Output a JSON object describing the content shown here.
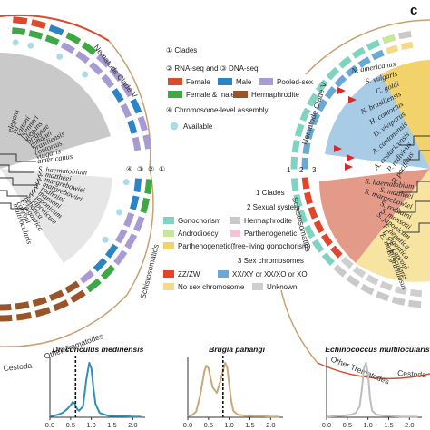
{
  "panel_c_letter": "c",
  "left_wheel": {
    "species_top": [
      "elegans",
      "ca",
      "cattoni",
      "brenneri",
      "ulegans",
      "briggsae",
      "remanei",
      "brasiliensis",
      "contortus",
      "vulgaris",
      "americanus"
    ],
    "species_bottom": [
      "S. haematobium",
      "S. mattheei",
      "S. margrebowiei",
      "S. margrebowiei",
      "S. rodhaini",
      "S. mansoni",
      "S. japonicum",
      "S. japonicum",
      "hepatica",
      "F. gigantica",
      "caproni",
      "multilocularis"
    ],
    "clades": {
      "nematode": "Nematode Clade V",
      "schisto": "Schistosomatids",
      "trematodes": "Other Trematodes",
      "cestoda": "Cestoda"
    },
    "ring_numbers": [
      "④",
      "③",
      "②",
      "①"
    ]
  },
  "legend1": {
    "clades": "① Clades",
    "rnaseq": "② RNA-seq and ③ DNA-seq",
    "female": "Female",
    "male": "Male",
    "pooled": "Pooled-sex",
    "female_male": "Female & male",
    "herm": "Hermaphrodite",
    "chrom": "④ Chromosome-level assembly",
    "available": "Available"
  },
  "legend2": {
    "clades": "1 Clades",
    "sexsys": "2 Sexual system",
    "gono": "Gonochorism",
    "herm": "Hermaphrodite",
    "andro": "Androdioecy",
    "parth": "Parthenogenetic",
    "parth_free": "Parthenogenetic(free-living gonochorism)",
    "sexchrom": "3 Sex chromosomes",
    "zw": "ZZ/ZW",
    "xy": "XX/XY or XX/XO or XO",
    "nosex": "No sex chromosome",
    "unknown": "Unknown"
  },
  "right_wheel": {
    "ring_numbers": [
      "1",
      "2",
      "3"
    ],
    "species_top": [
      "P. pacificus",
      "P. redivivus",
      "A. costaricensis",
      "A. cantonensis",
      "D. viviparus",
      "H. contortus",
      "N. brasiliensis",
      "C. goldi",
      "S. vulgaris",
      "N. americanus"
    ],
    "species_bottom": [
      "S. haematobium",
      "S. mattheei",
      "S. margrebowiei",
      "S. rodhaini",
      "S. mansoni",
      "S. japonicum",
      "F. hepatica",
      "F. gigantica",
      "E. caproni",
      "E. multilocularis",
      "E. granulosus"
    ],
    "clades": {
      "nematode": "Nematode Clade V",
      "schisto": "Schistosomatids",
      "trematodes": "Other Trematodes",
      "cestoda": "Cestoda"
    }
  },
  "chart_data": [
    {
      "type": "line",
      "title": "Dracunculus medinensis",
      "xlim": [
        0.0,
        2.3
      ],
      "xticks": [
        "0.0",
        "0.5",
        "1.0",
        "1.5",
        "2.0"
      ],
      "vline": 0.62,
      "color": "#2f8fb5",
      "x": [
        0.0,
        0.1,
        0.2,
        0.3,
        0.4,
        0.5,
        0.55,
        0.6,
        0.65,
        0.7,
        0.8,
        0.88,
        0.95,
        1.0,
        1.05,
        1.1,
        1.2,
        1.4,
        1.6,
        1.8,
        2.0,
        2.2
      ],
      "y": [
        0.02,
        0.03,
        0.05,
        0.08,
        0.14,
        0.22,
        0.28,
        0.25,
        0.16,
        0.12,
        0.2,
        0.7,
        1.0,
        0.9,
        0.55,
        0.25,
        0.08,
        0.03,
        0.02,
        0.02,
        0.01,
        0.01
      ]
    },
    {
      "type": "line",
      "title": "Brugia pahangi",
      "xlim": [
        0.0,
        2.3
      ],
      "xticks": [
        "0.0",
        "0.5",
        "1.0",
        "1.5",
        "2.0"
      ],
      "vline": 0.85,
      "color": "#c8a97a",
      "x": [
        0.0,
        0.1,
        0.2,
        0.3,
        0.4,
        0.45,
        0.5,
        0.6,
        0.7,
        0.8,
        0.9,
        0.95,
        1.0,
        1.05,
        1.1,
        1.2,
        1.4,
        1.6,
        1.8,
        2.0,
        2.2
      ],
      "y": [
        0.02,
        0.04,
        0.1,
        0.4,
        0.85,
        0.95,
        0.9,
        0.55,
        0.45,
        0.7,
        1.0,
        0.92,
        0.6,
        0.3,
        0.12,
        0.05,
        0.03,
        0.02,
        0.02,
        0.01,
        0.01
      ]
    },
    {
      "type": "line",
      "title": "Echinococcus multilocularis",
      "xlim": [
        0.0,
        2.3
      ],
      "xticks": [
        "0.0",
        "0.5",
        "1.0",
        "1.5",
        "2.0"
      ],
      "vline": null,
      "color": "#bdbdbd",
      "x": [
        0.0,
        0.2,
        0.4,
        0.6,
        0.7,
        0.8,
        0.85,
        0.9,
        0.95,
        1.0,
        1.05,
        1.1,
        1.2,
        1.4,
        1.6,
        1.8,
        2.0,
        2.2
      ],
      "y": [
        0.01,
        0.02,
        0.03,
        0.05,
        0.08,
        0.2,
        0.5,
        0.9,
        1.0,
        0.8,
        0.35,
        0.12,
        0.05,
        0.03,
        0.02,
        0.01,
        0.01,
        0.01
      ]
    }
  ]
}
